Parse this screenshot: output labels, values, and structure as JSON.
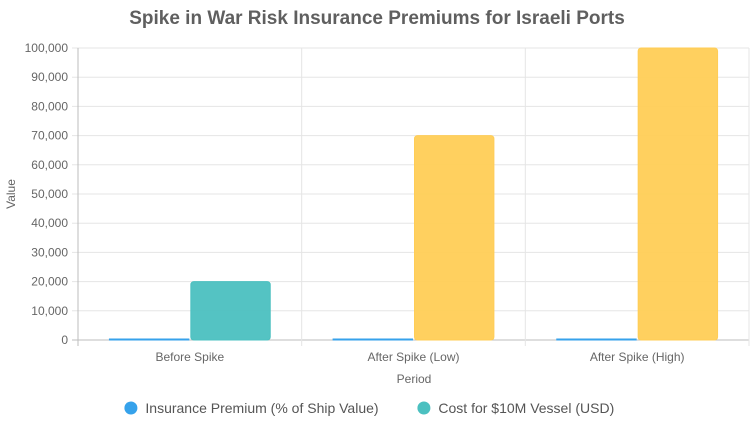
{
  "chart_data": {
    "type": "bar",
    "title": "Spike in War Risk Insurance Premiums for Israeli Ports",
    "xlabel": "Period",
    "ylabel": "Value",
    "categories": [
      "Before Spike",
      "After Spike (Low)",
      "After Spike (High)"
    ],
    "ylim": [
      0,
      100000
    ],
    "yticks": [
      0,
      10000,
      20000,
      30000,
      40000,
      50000,
      60000,
      70000,
      80000,
      90000,
      100000
    ],
    "grid": true,
    "legend_position": "bottom",
    "series": [
      {
        "name": "Insurance Premium (% of Ship Value)",
        "color": "#36a2eb",
        "values": [
          0.2,
          0.7,
          1.0
        ]
      },
      {
        "name": "Cost for $10M Vessel (USD)",
        "color_before": "#4bc0c0",
        "color_after": "#ffcd56",
        "values": [
          20000,
          70000,
          100000
        ]
      }
    ]
  }
}
